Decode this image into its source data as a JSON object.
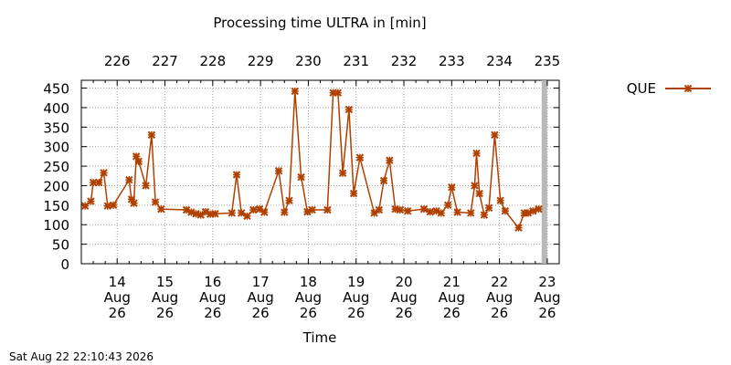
{
  "chart_data": {
    "type": "line",
    "title": "Processing time ULTRA in [min]",
    "xlabel": "Time",
    "ylabel": "",
    "ylim": [
      0,
      470
    ],
    "yticks": [
      0,
      50,
      100,
      150,
      200,
      250,
      300,
      350,
      400,
      450
    ],
    "grid": true,
    "legend_position": "top-right",
    "footer": "Sat Aug 22 22:10:43 2026",
    "x_ticks_bottom": [
      {
        "day": 14,
        "label": [
          "14",
          "Aug",
          "26"
        ]
      },
      {
        "day": 15,
        "label": [
          "15",
          "Aug",
          "26"
        ]
      },
      {
        "day": 16,
        "label": [
          "16",
          "Aug",
          "26"
        ]
      },
      {
        "day": 17,
        "label": [
          "17",
          "Aug",
          "26"
        ]
      },
      {
        "day": 18,
        "label": [
          "18",
          "Aug",
          "26"
        ]
      },
      {
        "day": 19,
        "label": [
          "19",
          "Aug",
          "26"
        ]
      },
      {
        "day": 20,
        "label": [
          "20",
          "Aug",
          "26"
        ]
      },
      {
        "day": 21,
        "label": [
          "21",
          "Aug",
          "26"
        ]
      },
      {
        "day": 22,
        "label": [
          "22",
          "Aug",
          "26"
        ]
      },
      {
        "day": 23,
        "label": [
          "23",
          "Aug",
          "26"
        ]
      }
    ],
    "x_ticks_top": [
      {
        "day": 14,
        "label": "226"
      },
      {
        "day": 15,
        "label": "227"
      },
      {
        "day": 16,
        "label": "228"
      },
      {
        "day": 17,
        "label": "229"
      },
      {
        "day": 18,
        "label": "230"
      },
      {
        "day": 19,
        "label": "231"
      },
      {
        "day": 20,
        "label": "232"
      },
      {
        "day": 21,
        "label": "233"
      },
      {
        "day": 22,
        "label": "234"
      },
      {
        "day": 23,
        "label": "235"
      }
    ],
    "x_range_days": [
      13.25,
      23.25
    ],
    "now_marker_day": 22.94,
    "series": [
      {
        "name": "QUE",
        "color": "#b04000",
        "marker": "x-star",
        "points": [
          [
            13.33,
            148
          ],
          [
            13.45,
            160
          ],
          [
            13.5,
            208
          ],
          [
            13.62,
            208
          ],
          [
            13.72,
            233
          ],
          [
            13.8,
            148
          ],
          [
            13.92,
            150
          ],
          [
            14.25,
            215
          ],
          [
            14.3,
            165
          ],
          [
            14.35,
            155
          ],
          [
            14.4,
            275
          ],
          [
            14.45,
            262
          ],
          [
            14.6,
            200
          ],
          [
            14.72,
            330
          ],
          [
            14.8,
            158
          ],
          [
            14.92,
            140
          ],
          [
            15.45,
            138
          ],
          [
            15.55,
            132
          ],
          [
            15.65,
            128
          ],
          [
            15.75,
            125
          ],
          [
            15.85,
            133
          ],
          [
            15.95,
            127
          ],
          [
            16.05,
            128
          ],
          [
            16.4,
            130
          ],
          [
            16.5,
            228
          ],
          [
            16.6,
            130
          ],
          [
            16.72,
            122
          ],
          [
            16.85,
            138
          ],
          [
            16.98,
            140
          ],
          [
            17.08,
            132
          ],
          [
            17.38,
            238
          ],
          [
            17.5,
            132
          ],
          [
            17.6,
            162
          ],
          [
            17.72,
            442
          ],
          [
            17.85,
            222
          ],
          [
            17.98,
            133
          ],
          [
            18.08,
            138
          ],
          [
            18.4,
            138
          ],
          [
            18.52,
            438
          ],
          [
            18.62,
            438
          ],
          [
            18.72,
            232
          ],
          [
            18.85,
            395
          ],
          [
            18.95,
            180
          ],
          [
            19.08,
            272
          ],
          [
            19.38,
            130
          ],
          [
            19.48,
            138
          ],
          [
            19.58,
            213
          ],
          [
            19.7,
            265
          ],
          [
            19.82,
            140
          ],
          [
            19.92,
            138
          ],
          [
            20.08,
            135
          ],
          [
            20.42,
            140
          ],
          [
            20.55,
            133
          ],
          [
            20.68,
            135
          ],
          [
            20.78,
            130
          ],
          [
            20.92,
            150
          ],
          [
            21.0,
            196
          ],
          [
            21.12,
            132
          ],
          [
            21.4,
            130
          ],
          [
            21.48,
            200
          ],
          [
            21.52,
            283
          ],
          [
            21.58,
            180
          ],
          [
            21.68,
            125
          ],
          [
            21.78,
            143
          ],
          [
            21.9,
            330
          ],
          [
            22.02,
            162
          ],
          [
            22.12,
            135
          ],
          [
            22.4,
            92
          ],
          [
            22.52,
            130
          ],
          [
            22.6,
            130
          ],
          [
            22.7,
            135
          ],
          [
            22.82,
            140
          ]
        ]
      }
    ]
  }
}
